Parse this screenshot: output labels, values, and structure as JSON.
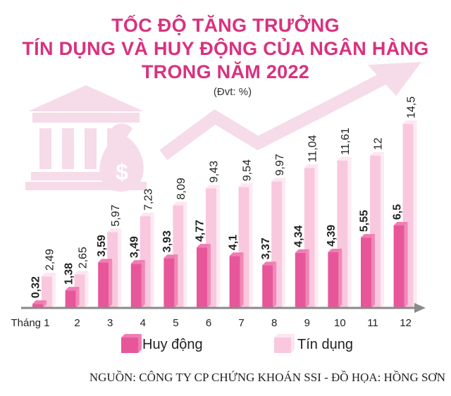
{
  "header": {
    "title_lines": [
      "TỐC ĐỘ TĂNG TRƯỞNG",
      "TÍN DỤNG VÀ HUY ĐỘNG CỦA NGÂN HÀNG",
      "TRONG NĂM 2022"
    ],
    "unit": "(Đvt: %)"
  },
  "colors": {
    "title": "#d9317f",
    "huy_dong_front": "#e8569a",
    "huy_dong_top": "#f07cb2",
    "tin_dung_front": "#f9c8de",
    "tin_dung_top": "#fde6f0",
    "axis": "#8a8a8a",
    "decor": "#f6dbe8"
  },
  "chart_data": {
    "type": "bar",
    "categories": [
      "Tháng 1",
      "2",
      "3",
      "4",
      "5",
      "6",
      "7",
      "8",
      "9",
      "10",
      "11",
      "12"
    ],
    "series": [
      {
        "name": "Huy động",
        "values": [
          0.32,
          1.38,
          3.59,
          3.49,
          3.93,
          4.77,
          4.1,
          3.37,
          4.34,
          4.39,
          5.55,
          6.5
        ]
      },
      {
        "name": "Tín dụng",
        "values": [
          2.49,
          2.65,
          5.97,
          7.23,
          8.09,
          9.43,
          9.54,
          9.97,
          11.04,
          11.61,
          12,
          14.5
        ]
      }
    ],
    "data_labels": {
      "huy_dong": [
        "0,32",
        "1,38",
        "3,59",
        "3,49",
        "3,93",
        "4,77",
        "4,1",
        "3,37",
        "4,34",
        "4,39",
        "5,55",
        "6,5"
      ],
      "tin_dung": [
        "2,49",
        "2,65",
        "5,97",
        "7,23",
        "8,09",
        "9,43",
        "9,54",
        "9,97",
        "11,04",
        "11,61",
        "12",
        "14,5"
      ]
    },
    "ylim": [
      0,
      15
    ],
    "grid": false,
    "legend_position": "bottom"
  },
  "footer": {
    "source": "NGUỒN: CÔNG TY CP CHỨNG KHOÁN SSI - ĐỒ HỌA: HỒNG SƠN"
  }
}
